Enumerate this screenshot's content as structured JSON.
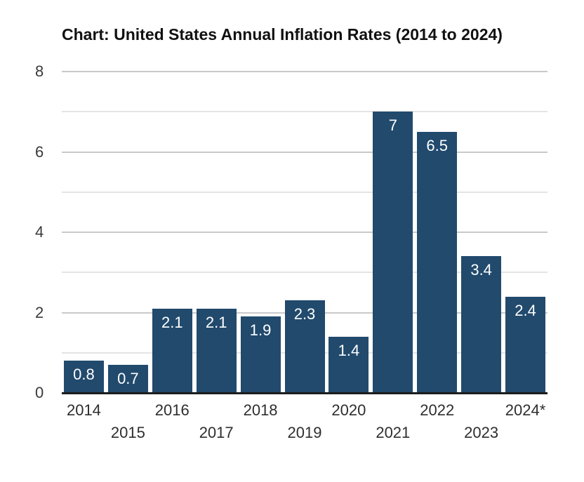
{
  "title": "Chart: United States Annual Inflation Rates (2014 to 2024)",
  "chart_data": {
    "type": "bar",
    "title": "Chart: United States Annual Inflation Rates (2014 to 2024)",
    "categories": [
      "2014",
      "2015",
      "2016",
      "2017",
      "2018",
      "2019",
      "2020",
      "2021",
      "2022",
      "2023",
      "2024*"
    ],
    "values": [
      0.8,
      0.7,
      2.1,
      2.1,
      1.9,
      2.3,
      1.4,
      7,
      6.5,
      3.4,
      2.4
    ],
    "value_labels": [
      "0.8",
      "0.7",
      "2.1",
      "2.1",
      "1.9",
      "2.3",
      "1.4",
      "7",
      "6.5",
      "3.4",
      "2.4"
    ],
    "xlabel": "",
    "ylabel": "",
    "y_tick_labels": [
      "0",
      "2",
      "4",
      "6",
      "8"
    ],
    "y_ticks": [
      0,
      2,
      4,
      6,
      8
    ],
    "ylim": [
      0,
      8
    ],
    "gridline_step": 1,
    "grid": "on",
    "legend": "none",
    "x_labels_staggered": true,
    "colors": {
      "bar": "#214a6d",
      "value_label": "#ffffff",
      "grid_major": "#c9c9c9",
      "grid_minor": "#e4e4e4",
      "baseline": "#1d1d1d",
      "title_text": "#111111",
      "axis_text": "#3a3a3a",
      "background": "#ffffff"
    }
  }
}
